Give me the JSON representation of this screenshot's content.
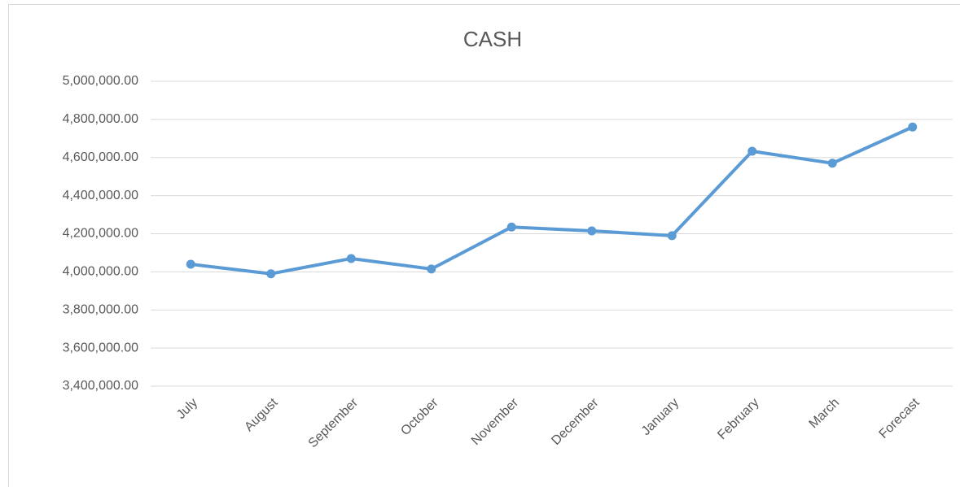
{
  "chart_data": {
    "type": "line",
    "title": "CASH",
    "categories": [
      "July",
      "August",
      "September",
      "October",
      "November",
      "December",
      "January",
      "February",
      "March",
      "Forecast"
    ],
    "series": [
      {
        "name": "CASH",
        "color": "#5b9bd5",
        "values": [
          4040000,
          3990000,
          4070000,
          4015000,
          4235000,
          4215000,
          4190000,
          4633000,
          4570000,
          4760000
        ]
      }
    ],
    "ylim": [
      3400000,
      5000000
    ],
    "yticks": [
      {
        "value": 3400000,
        "label": "3,400,000.00"
      },
      {
        "value": 3600000,
        "label": "3,600,000.00"
      },
      {
        "value": 3800000,
        "label": "3,800,000.00"
      },
      {
        "value": 4000000,
        "label": "4,000,000.00"
      },
      {
        "value": 4200000,
        "label": "4,200,000.00"
      },
      {
        "value": 4400000,
        "label": "4,400,000.00"
      },
      {
        "value": 4600000,
        "label": "4,600,000.00"
      },
      {
        "value": 4800000,
        "label": "4,800,000.00"
      },
      {
        "value": 5000000,
        "label": "5,000,000.00"
      }
    ],
    "grid": true
  }
}
